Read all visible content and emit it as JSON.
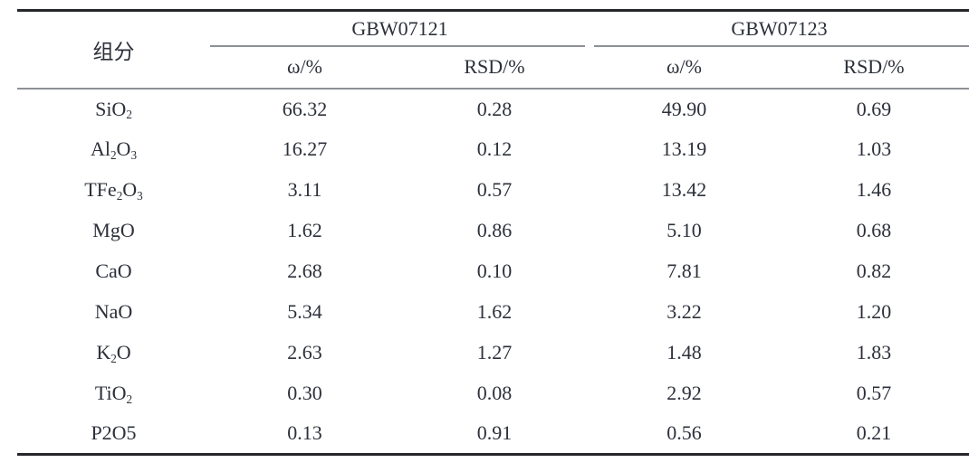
{
  "page": {
    "colors": {
      "background": "#ffffff",
      "text": "#2c303a",
      "rule_dark": "#26272b",
      "rule_gray": "#8d9095"
    }
  },
  "table": {
    "component_header": "组分",
    "groups": [
      {
        "label": "GBW07121",
        "subheaders": [
          "ω/%",
          "RSD/%"
        ]
      },
      {
        "label": "GBW07123",
        "subheaders": [
          "ω/%",
          "RSD/%"
        ]
      }
    ],
    "rows": [
      {
        "component": "SiO_2_",
        "values": [
          "66.32",
          "0.28",
          "49.90",
          "0.69"
        ]
      },
      {
        "component": "Al_2_O_3_",
        "values": [
          "16.27",
          "0.12",
          "13.19",
          "1.03"
        ]
      },
      {
        "component": "TFe_2_O_3_",
        "values": [
          "3.11",
          "0.57",
          "13.42",
          "1.46"
        ]
      },
      {
        "component": "MgO",
        "values": [
          "1.62",
          "0.86",
          "5.10",
          "0.68"
        ]
      },
      {
        "component": "CaO",
        "values": [
          "2.68",
          "0.10",
          "7.81",
          "0.82"
        ]
      },
      {
        "component": "NaO",
        "values": [
          "5.34",
          "1.62",
          "3.22",
          "1.20"
        ]
      },
      {
        "component": "K_2_O",
        "values": [
          "2.63",
          "1.27",
          "1.48",
          "1.83"
        ]
      },
      {
        "component": "TiO_2_",
        "values": [
          "0.30",
          "0.08",
          "2.92",
          "0.57"
        ]
      },
      {
        "component": "P2O5",
        "values": [
          "0.13",
          "0.91",
          "0.56",
          "0.21"
        ]
      }
    ]
  }
}
